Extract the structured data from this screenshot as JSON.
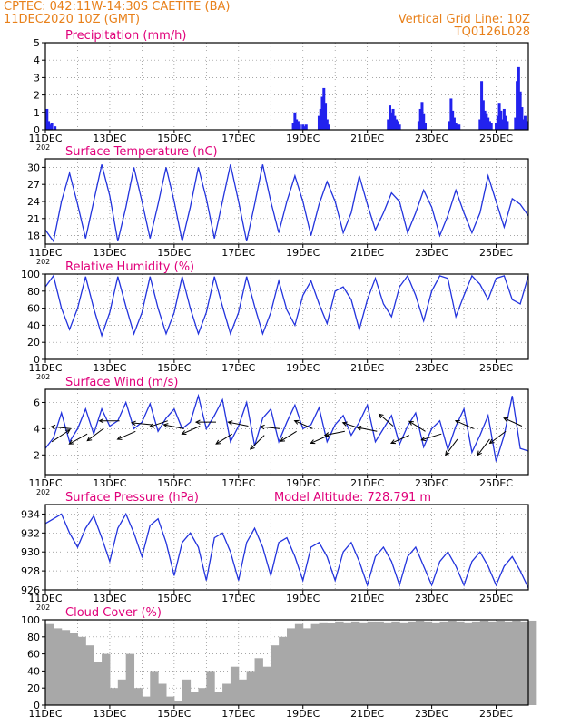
{
  "header": {
    "line1": "CPTEC:   042:11W-14:30S   CAETITE (BA)",
    "line2": "11DEC2020 10Z (GMT)",
    "grid_note": "Vertical Grid Line: 10Z",
    "code": "TQ0126L028"
  },
  "colors": {
    "header": "#e8801a",
    "title": "#e0007a",
    "line": "#2233dd",
    "bar": "#2222ee",
    "cloud": "#a8a8a8",
    "wind_arrow": "#000000"
  },
  "x_ticks": [
    "11DEC",
    "13DEC",
    "15DEC",
    "17DEC",
    "19DEC",
    "21DEC",
    "23DEC",
    "25DEC"
  ],
  "year_fragment": "202",
  "chart_data": [
    {
      "id": "precip",
      "type": "bar",
      "title": "Precipitation (mm/h)",
      "ylim": [
        0,
        5
      ],
      "yticks": [
        0,
        1,
        2,
        3,
        4,
        5
      ],
      "x_days": [
        0.05,
        0.1,
        0.15,
        0.2,
        0.3,
        7.7,
        7.75,
        7.8,
        7.85,
        7.9,
        8.0,
        8.05,
        8.1,
        8.5,
        8.55,
        8.6,
        8.65,
        8.7,
        8.75,
        8.8,
        10.65,
        10.7,
        10.75,
        10.8,
        10.85,
        10.9,
        10.95,
        11.0,
        11.6,
        11.65,
        11.7,
        11.75,
        11.8,
        12.55,
        12.6,
        12.65,
        12.7,
        12.75,
        12.8,
        12.85,
        13.5,
        13.55,
        13.6,
        13.65,
        13.7,
        13.75,
        13.8,
        13.85,
        14.0,
        14.05,
        14.1,
        14.15,
        14.2,
        14.25,
        14.3,
        14.35,
        14.6,
        14.65,
        14.7,
        14.75,
        14.8,
        14.85,
        14.9,
        14.95
      ],
      "values": [
        1.2,
        0.5,
        0.3,
        0.4,
        0.2,
        0.4,
        1.0,
        0.6,
        0.5,
        0.3,
        0.3,
        0.2,
        0.3,
        0.8,
        1.2,
        1.9,
        2.4,
        1.5,
        0.6,
        0.3,
        0.6,
        1.4,
        1.0,
        1.2,
        0.8,
        0.6,
        0.5,
        0.3,
        0.5,
        1.2,
        1.6,
        0.9,
        0.4,
        0.5,
        1.8,
        1.1,
        0.7,
        0.4,
        0.3,
        0.3,
        0.6,
        2.8,
        1.7,
        1.1,
        0.9,
        0.7,
        0.5,
        0.4,
        0.4,
        0.8,
        1.5,
        1.1,
        0.6,
        1.2,
        0.8,
        0.5,
        0.7,
        2.8,
        3.6,
        2.2,
        1.3,
        0.6,
        0.8,
        0.5
      ]
    },
    {
      "id": "temp",
      "type": "line",
      "title": "Surface Temperature (nC)",
      "ylim": [
        16.5,
        31.5
      ],
      "yticks": [
        18,
        21,
        24,
        27,
        30
      ],
      "x_days": [
        0,
        0.25,
        0.5,
        0.75,
        1.0,
        1.25,
        1.5,
        1.75,
        2.0,
        2.25,
        2.5,
        2.75,
        3.0,
        3.25,
        3.5,
        3.75,
        4.0,
        4.25,
        4.5,
        4.75,
        5.0,
        5.25,
        5.5,
        5.75,
        6.0,
        6.25,
        6.5,
        6.75,
        7.0,
        7.25,
        7.5,
        7.75,
        8.0,
        8.25,
        8.5,
        8.75,
        9.0,
        9.25,
        9.5,
        9.75,
        10.0,
        10.25,
        10.5,
        10.75,
        11.0,
        11.25,
        11.5,
        11.75,
        12.0,
        12.25,
        12.5,
        12.75,
        13.0,
        13.25,
        13.5,
        13.75,
        14.0,
        14.25,
        14.5,
        14.75,
        15.0
      ],
      "values": [
        19.0,
        17.0,
        24.0,
        29.0,
        23.5,
        17.5,
        24.0,
        30.5,
        25.0,
        17.0,
        23.0,
        30.0,
        24.0,
        17.5,
        23.5,
        30.0,
        24.0,
        17.0,
        23.0,
        30.0,
        24.5,
        17.5,
        24.0,
        30.5,
        24.0,
        17.0,
        23.5,
        30.5,
        24.0,
        18.5,
        24.0,
        28.5,
        24.0,
        18.0,
        23.5,
        27.5,
        24.0,
        18.5,
        22.0,
        28.5,
        23.5,
        19.0,
        22.0,
        25.5,
        24.0,
        18.5,
        22.0,
        26.0,
        23.0,
        18.0,
        21.5,
        26.0,
        22.0,
        18.5,
        22.0,
        28.5,
        24.0,
        19.5,
        24.5,
        23.5,
        21.5
      ]
    },
    {
      "id": "rh",
      "type": "line",
      "title": "Relative Humidity (%)",
      "ylim": [
        0,
        100
      ],
      "yticks": [
        0,
        20,
        40,
        60,
        80,
        100
      ],
      "x_days": [
        0,
        0.25,
        0.5,
        0.75,
        1.0,
        1.25,
        1.5,
        1.75,
        2.0,
        2.25,
        2.5,
        2.75,
        3.0,
        3.25,
        3.5,
        3.75,
        4.0,
        4.25,
        4.5,
        4.75,
        5.0,
        5.25,
        5.5,
        5.75,
        6.0,
        6.25,
        6.5,
        6.75,
        7.0,
        7.25,
        7.5,
        7.75,
        8.0,
        8.25,
        8.5,
        8.75,
        9.0,
        9.25,
        9.5,
        9.75,
        10.0,
        10.25,
        10.5,
        10.75,
        11.0,
        11.25,
        11.5,
        11.75,
        12.0,
        12.25,
        12.5,
        12.75,
        13.0,
        13.25,
        13.5,
        13.75,
        14.0,
        14.25,
        14.5,
        14.75,
        15.0
      ],
      "values": [
        85,
        98,
        60,
        35,
        60,
        97,
        60,
        28,
        55,
        97,
        62,
        30,
        55,
        97,
        60,
        30,
        55,
        97,
        60,
        30,
        55,
        97,
        62,
        30,
        55,
        97,
        62,
        30,
        55,
        92,
        58,
        40,
        75,
        92,
        65,
        42,
        80,
        85,
        70,
        35,
        70,
        95,
        65,
        50,
        85,
        98,
        75,
        45,
        80,
        98,
        95,
        50,
        75,
        98,
        88,
        70,
        95,
        98,
        70,
        65,
        98
      ]
    },
    {
      "id": "wind",
      "type": "line",
      "title": "Surface Wind (m/s)",
      "ylim": [
        0.5,
        7.0
      ],
      "yticks": [
        2,
        4,
        6
      ],
      "x_days": [
        0,
        0.25,
        0.5,
        0.75,
        1.0,
        1.25,
        1.5,
        1.75,
        2.0,
        2.25,
        2.5,
        2.75,
        3.0,
        3.25,
        3.5,
        3.75,
        4.0,
        4.25,
        4.5,
        4.75,
        5.0,
        5.25,
        5.5,
        5.75,
        6.0,
        6.25,
        6.5,
        6.75,
        7.0,
        7.25,
        7.5,
        7.75,
        8.0,
        8.25,
        8.5,
        8.75,
        9.0,
        9.25,
        9.5,
        9.75,
        10.0,
        10.25,
        10.5,
        10.75,
        11.0,
        11.25,
        11.5,
        11.75,
        12.0,
        12.25,
        12.5,
        12.75,
        13.0,
        13.25,
        13.5,
        13.75,
        14.0,
        14.25,
        14.5,
        14.75,
        15.0
      ],
      "values": [
        2.5,
        3.3,
        5.2,
        3.0,
        4.0,
        5.5,
        3.6,
        5.5,
        4.2,
        4.6,
        6.0,
        4.0,
        4.5,
        5.9,
        3.8,
        4.8,
        5.5,
        4.0,
        4.5,
        6.5,
        4.0,
        5.0,
        6.2,
        3.0,
        4.2,
        6.0,
        2.7,
        4.8,
        5.5,
        3.0,
        4.5,
        5.8,
        4.0,
        4.3,
        5.6,
        3.0,
        4.3,
        5.0,
        3.5,
        4.5,
        5.8,
        3.0,
        4.0,
        5.0,
        2.8,
        4.2,
        5.2,
        2.6,
        4.0,
        4.6,
        2.4,
        4.2,
        5.5,
        2.2,
        3.5,
        5.0,
        1.5,
        3.5,
        6.5,
        2.5,
        2.3
      ],
      "vectors": [
        {
          "x": 0.2,
          "speed": 3.0,
          "dx": 0.9,
          "dy": 0.6
        },
        {
          "x": 0.8,
          "speed": 4.0,
          "dx": -1.0,
          "dy": 0.1
        },
        {
          "x": 1.3,
          "speed": 3.6,
          "dx": -0.9,
          "dy": -0.5
        },
        {
          "x": 1.8,
          "speed": 4.0,
          "dx": -0.8,
          "dy": -0.6
        },
        {
          "x": 2.3,
          "speed": 4.6,
          "dx": -1.0,
          "dy": 0.0
        },
        {
          "x": 2.8,
          "speed": 3.8,
          "dx": -0.9,
          "dy": -0.4
        },
        {
          "x": 3.3,
          "speed": 4.3,
          "dx": -1.0,
          "dy": 0.1
        },
        {
          "x": 3.8,
          "speed": 4.6,
          "dx": -0.9,
          "dy": -0.3
        },
        {
          "x": 4.3,
          "speed": 4.0,
          "dx": -1.0,
          "dy": 0.2
        },
        {
          "x": 4.8,
          "speed": 4.2,
          "dx": -0.9,
          "dy": -0.4
        },
        {
          "x": 5.3,
          "speed": 4.5,
          "dx": -1.0,
          "dy": 0.0
        },
        {
          "x": 5.8,
          "speed": 3.6,
          "dx": -0.8,
          "dy": -0.5
        },
        {
          "x": 6.3,
          "speed": 4.2,
          "dx": -1.0,
          "dy": 0.2
        },
        {
          "x": 6.8,
          "speed": 3.5,
          "dx": -0.7,
          "dy": -0.7
        },
        {
          "x": 7.3,
          "speed": 4.0,
          "dx": -1.0,
          "dy": 0.1
        },
        {
          "x": 7.8,
          "speed": 3.8,
          "dx": -0.8,
          "dy": -0.5
        },
        {
          "x": 8.3,
          "speed": 4.0,
          "dx": -0.9,
          "dy": 0.4
        },
        {
          "x": 8.8,
          "speed": 3.5,
          "dx": -0.9,
          "dy": -0.4
        },
        {
          "x": 9.3,
          "speed": 3.8,
          "dx": -1.0,
          "dy": -0.2
        },
        {
          "x": 9.8,
          "speed": 4.0,
          "dx": -0.9,
          "dy": 0.3
        },
        {
          "x": 10.3,
          "speed": 3.8,
          "dx": -1.0,
          "dy": 0.2
        },
        {
          "x": 10.8,
          "speed": 4.2,
          "dx": -0.7,
          "dy": 0.6
        },
        {
          "x": 11.3,
          "speed": 3.5,
          "dx": -0.9,
          "dy": -0.4
        },
        {
          "x": 11.8,
          "speed": 3.8,
          "dx": -0.8,
          "dy": 0.5
        },
        {
          "x": 12.3,
          "speed": 3.6,
          "dx": -1.0,
          "dy": -0.3
        },
        {
          "x": 12.8,
          "speed": 3.2,
          "dx": -0.6,
          "dy": -0.8
        },
        {
          "x": 13.3,
          "speed": 4.0,
          "dx": -0.9,
          "dy": 0.4
        },
        {
          "x": 13.8,
          "speed": 3.2,
          "dx": -0.6,
          "dy": -0.8
        },
        {
          "x": 14.3,
          "speed": 3.8,
          "dx": -0.8,
          "dy": -0.6
        },
        {
          "x": 14.8,
          "speed": 4.2,
          "dx": -0.9,
          "dy": 0.4
        }
      ]
    },
    {
      "id": "pressure",
      "type": "line",
      "title": "Surface Pressure (hPa)",
      "extra": "Model Altitude: 728.791 m",
      "ylim": [
        926,
        935
      ],
      "yticks": [
        926,
        928,
        930,
        932,
        934
      ],
      "x_days": [
        0,
        0.25,
        0.5,
        0.75,
        1.0,
        1.25,
        1.5,
        1.75,
        2.0,
        2.25,
        2.5,
        2.75,
        3.0,
        3.25,
        3.5,
        3.75,
        4.0,
        4.25,
        4.5,
        4.75,
        5.0,
        5.25,
        5.5,
        5.75,
        6.0,
        6.25,
        6.5,
        6.75,
        7.0,
        7.25,
        7.5,
        7.75,
        8.0,
        8.25,
        8.5,
        8.75,
        9.0,
        9.25,
        9.5,
        9.75,
        10.0,
        10.25,
        10.5,
        10.75,
        11.0,
        11.25,
        11.5,
        11.75,
        12.0,
        12.25,
        12.5,
        12.75,
        13.0,
        13.25,
        13.5,
        13.75,
        14.0,
        14.25,
        14.5,
        14.75,
        15.0
      ],
      "values": [
        933.0,
        933.5,
        934.0,
        932.0,
        930.5,
        932.5,
        933.8,
        931.5,
        929.0,
        932.5,
        934.0,
        932.0,
        929.5,
        932.8,
        933.5,
        931.0,
        927.5,
        931.0,
        932.0,
        930.5,
        927.0,
        931.5,
        932.0,
        930.0,
        927.0,
        931.0,
        932.5,
        930.5,
        927.5,
        931.0,
        931.5,
        929.5,
        927.0,
        930.5,
        931.0,
        929.5,
        927.0,
        930.0,
        931.0,
        929.0,
        926.5,
        929.5,
        930.5,
        929.0,
        926.5,
        929.5,
        930.5,
        928.5,
        926.5,
        929.0,
        930.0,
        928.5,
        926.5,
        929.0,
        930.0,
        928.5,
        926.5,
        928.5,
        929.5,
        928.0,
        926.2
      ]
    },
    {
      "id": "cloud",
      "type": "bar",
      "title": "Cloud Cover (%)",
      "ylim": [
        0,
        100
      ],
      "yticks": [
        0,
        20,
        40,
        60,
        80,
        100
      ],
      "x_days": [
        0,
        0.25,
        0.5,
        0.75,
        1.0,
        1.25,
        1.5,
        1.75,
        2.0,
        2.25,
        2.5,
        2.75,
        3.0,
        3.25,
        3.5,
        3.75,
        4.0,
        4.25,
        4.5,
        4.75,
        5.0,
        5.25,
        5.5,
        5.75,
        6.0,
        6.25,
        6.5,
        6.75,
        7.0,
        7.25,
        7.5,
        7.75,
        8.0,
        8.25,
        8.5,
        8.75,
        9.0,
        9.25,
        9.5,
        9.75,
        10.0,
        10.25,
        10.5,
        10.75,
        11.0,
        11.25,
        11.5,
        11.75,
        12.0,
        12.25,
        12.5,
        12.75,
        13.0,
        13.25,
        13.5,
        13.75,
        14.0,
        14.25,
        14.5,
        14.75,
        15.0
      ],
      "values": [
        95,
        90,
        88,
        85,
        80,
        70,
        50,
        60,
        20,
        30,
        60,
        20,
        10,
        40,
        25,
        10,
        5,
        30,
        15,
        20,
        40,
        15,
        25,
        45,
        30,
        40,
        55,
        45,
        70,
        80,
        90,
        95,
        90,
        95,
        97,
        96,
        98,
        97,
        98,
        97,
        98,
        98,
        97,
        98,
        97,
        98,
        99,
        98,
        97,
        98,
        99,
        98,
        97,
        98,
        99,
        98,
        99,
        98,
        99,
        98,
        99
      ]
    }
  ]
}
